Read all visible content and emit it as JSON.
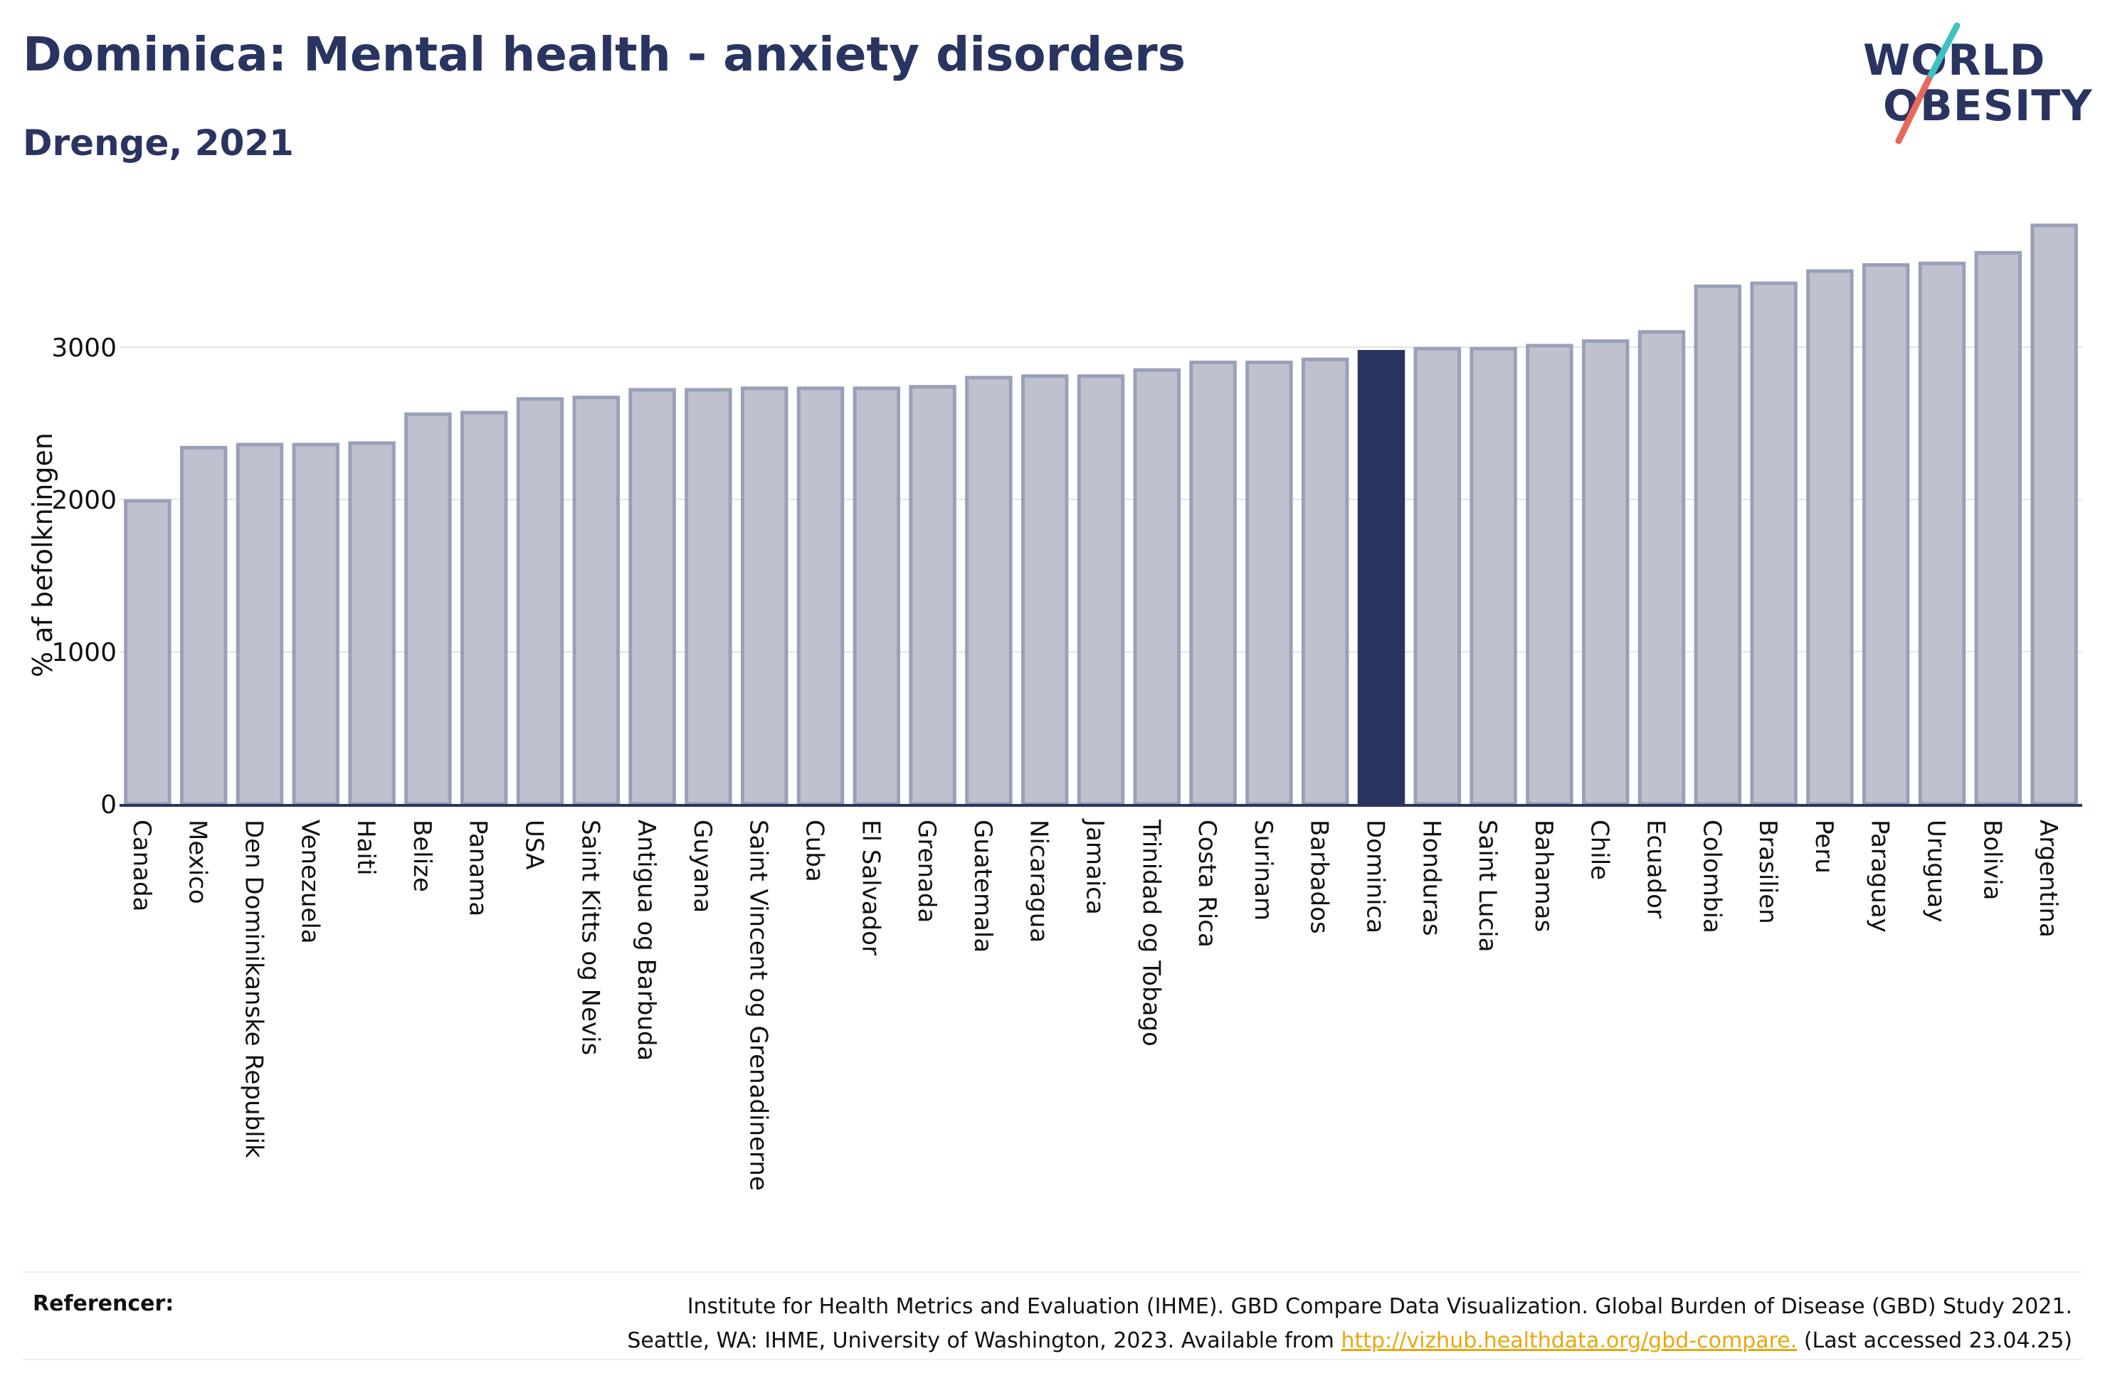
{
  "header": {
    "title": "Dominica: Mental health - anxiety disorders",
    "subtitle": "Drenge, 2021"
  },
  "logo": {
    "line1": "WORLD",
    "line2": "OBESITY",
    "colors": {
      "text": "#2a3461",
      "slash_top": "#3ec1c1",
      "slash_bottom": "#e8685a"
    }
  },
  "chart_data": {
    "type": "bar",
    "title": "Dominica: Mental health - anxiety disorders",
    "subtitle": "Drenge, 2021",
    "ylabel": "% af befolkningen",
    "xlabel": "",
    "ylim": [
      0,
      3900
    ],
    "yticks": [
      0,
      1000,
      2000,
      3000
    ],
    "grid": true,
    "highlight": "Dominica",
    "colors": {
      "bar_fill": "#bfc2ce",
      "bar_stroke": "#9aa0b8",
      "highlight": "#2a3461",
      "grid": "#e4e4e4",
      "axis": "#2a3461"
    },
    "categories": [
      "Canada",
      "Mexico",
      "Den Dominikanske Republik",
      "Venezuela",
      "Haiti",
      "Belize",
      "Panama",
      "USA",
      "Saint Kitts og Nevis",
      "Antigua og Barbuda",
      "Guyana",
      "Saint Vincent og Grenadinerne",
      "Cuba",
      "El Salvador",
      "Grenada",
      "Guatemala",
      "Nicaragua",
      "Jamaica",
      "Trinidad og Tobago",
      "Costa Rica",
      "Surinam",
      "Barbados",
      "Dominica",
      "Honduras",
      "Saint Lucia",
      "Bahamas",
      "Chile",
      "Ecuador",
      "Colombia",
      "Brasilien",
      "Peru",
      "Paraguay",
      "Uruguay",
      "Bolivia",
      "Argentina"
    ],
    "values": [
      1990,
      2340,
      2360,
      2360,
      2370,
      2560,
      2570,
      2660,
      2670,
      2720,
      2720,
      2730,
      2730,
      2730,
      2740,
      2800,
      2810,
      2810,
      2850,
      2900,
      2900,
      2920,
      2970,
      2990,
      2990,
      3010,
      3040,
      3100,
      3400,
      3420,
      3500,
      3540,
      3550,
      3620,
      3800
    ]
  },
  "references": {
    "label": "Referencer:",
    "line1": "Institute for Health Metrics and Evaluation (IHME). GBD Compare Data Visualization. Global Burden of Disease (GBD) Study 2021.",
    "line2_prefix": "Seattle, WA: IHME, University of Washington, 2023. Available from ",
    "link": "http://vizhub.healthdata.org/gbd-compare.",
    "line2_suffix": " (Last accessed 23.04.25)"
  }
}
